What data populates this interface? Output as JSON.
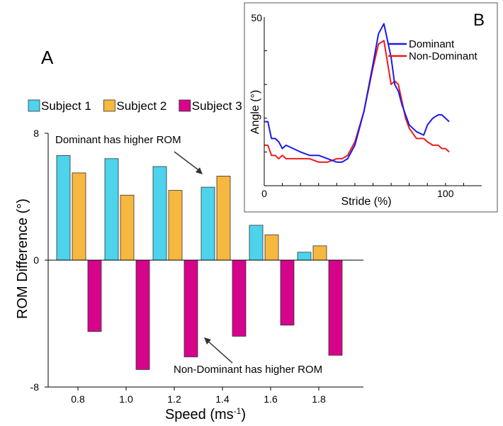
{
  "chart_data": [
    {
      "panel": "A",
      "type": "bar",
      "panel_label": "A",
      "xlabel": "Speed (ms",
      "xlabel_sup": "-1",
      "xlabel_end": ")",
      "ylabel": "ROM Difference (°)",
      "categories": [
        "0.8",
        "1.0",
        "1.2",
        "1.4",
        "1.6",
        "1.8"
      ],
      "ylim": [
        -8,
        8
      ],
      "yticks": [
        "8",
        "0",
        "-8"
      ],
      "legend_position": "top-left",
      "series": [
        {
          "name": "Subject 1",
          "color": "#4dd3ec",
          "values": [
            6.6,
            6.4,
            5.9,
            4.6,
            2.2,
            0.5
          ]
        },
        {
          "name": "Subject 2",
          "color": "#f7b840",
          "values": [
            5.5,
            4.1,
            4.4,
            5.3,
            1.6,
            0.9
          ]
        },
        {
          "name": "Subject 3",
          "color": "#d6048b",
          "values": [
            -4.5,
            -6.9,
            -6.1,
            -4.8,
            -4.1,
            -6.0
          ]
        }
      ],
      "annotations": [
        {
          "text": "Dominant has higher ROM"
        },
        {
          "text": "Non-Dominant has higher ROM"
        }
      ]
    },
    {
      "panel": "B",
      "type": "line",
      "panel_label": "B",
      "xlabel": "Stride (%)",
      "ylabel": "Angle (°)",
      "xlim": [
        0,
        120
      ],
      "ylim": [
        0,
        50
      ],
      "xticks": [
        "0",
        "100"
      ],
      "yticks": [
        "50"
      ],
      "legend_position": "top-right",
      "series": [
        {
          "name": "Dominant",
          "color": "#1a1aee",
          "x": [
            0,
            2,
            4,
            6,
            8,
            10,
            12,
            16,
            20,
            25,
            30,
            35,
            40,
            43,
            46,
            50,
            55,
            60,
            63,
            66,
            70,
            72,
            74,
            76,
            78,
            80,
            84,
            88,
            90,
            93,
            96,
            98,
            100,
            102
          ],
          "y": [
            19,
            19,
            14,
            14,
            13,
            11,
            12,
            11,
            10,
            9,
            9,
            8,
            7,
            7,
            8,
            12,
            22,
            36,
            45,
            48,
            38,
            30,
            28,
            24,
            21,
            18,
            16,
            15,
            18,
            20,
            21,
            21,
            20,
            19
          ]
        },
        {
          "name": "Non-Dominant",
          "color": "#ee1b1b",
          "x": [
            0,
            2,
            4,
            6,
            8,
            10,
            12,
            16,
            20,
            25,
            30,
            35,
            40,
            43,
            46,
            50,
            55,
            60,
            63,
            66,
            70,
            72,
            74,
            76,
            78,
            80,
            84,
            88,
            90,
            93,
            96,
            98,
            100,
            102
          ],
          "y": [
            12,
            12,
            9,
            9,
            8,
            9,
            8,
            8,
            8,
            8,
            7,
            7,
            8,
            8,
            9,
            13,
            22,
            35,
            42,
            43,
            30,
            31,
            30,
            25,
            20,
            17,
            14,
            14,
            13,
            12,
            12,
            11,
            11,
            10
          ]
        }
      ]
    }
  ]
}
